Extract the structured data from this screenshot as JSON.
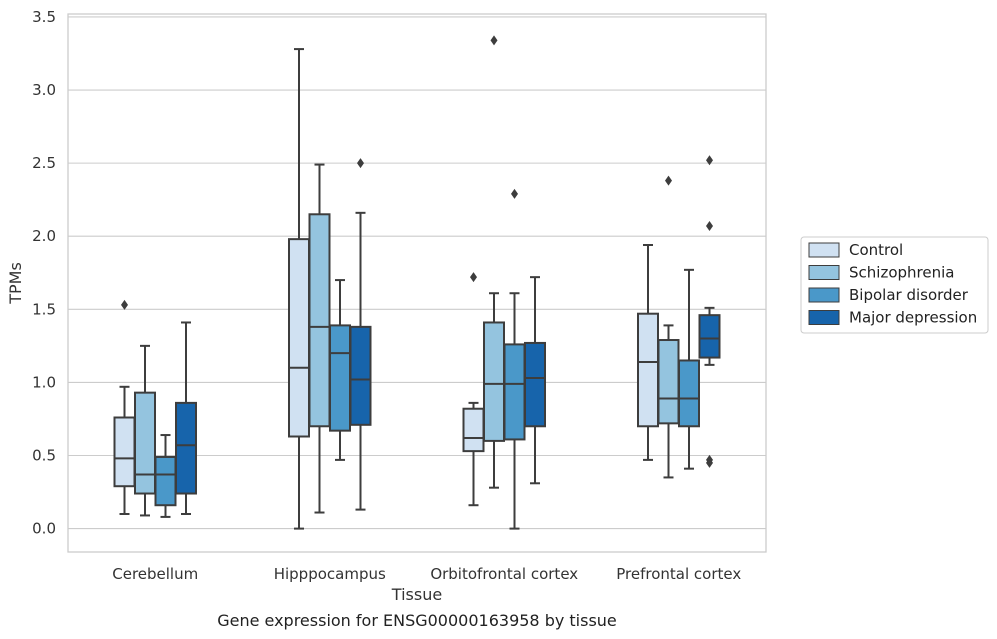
{
  "chart_data": {
    "type": "box",
    "xlabel": "Tissue",
    "ylabel": "TPMs",
    "caption": "Gene expression for ENSG00000163958 by tissue",
    "categories": [
      "Cerebellum",
      "Hipppocampus",
      "Orbitofrontal cortex",
      "Prefrontal cortex"
    ],
    "ylim": [
      -0.16,
      3.52
    ],
    "yticks": [
      "0.0",
      "0.5",
      "1.0",
      "1.5",
      "2.0",
      "2.5",
      "3.0",
      "3.5"
    ],
    "grid": "horizontal",
    "legend_position": "right",
    "series": [
      {
        "name": "Control",
        "color": "#d0e1f2",
        "boxes": [
          {
            "whislo": 0.1,
            "q1": 0.29,
            "med": 0.48,
            "q3": 0.76,
            "whishi": 0.97,
            "fliers": [
              1.53
            ]
          },
          {
            "whislo": 0.0,
            "q1": 0.63,
            "med": 1.1,
            "q3": 1.98,
            "whishi": 3.28,
            "fliers": []
          },
          {
            "whislo": 0.16,
            "q1": 0.53,
            "med": 0.62,
            "q3": 0.82,
            "whishi": 0.86,
            "fliers": [
              1.72
            ]
          },
          {
            "whislo": 0.47,
            "q1": 0.7,
            "med": 1.14,
            "q3": 1.47,
            "whishi": 1.94,
            "fliers": []
          }
        ]
      },
      {
        "name": "Schizophrenia",
        "color": "#94c4df",
        "boxes": [
          {
            "whislo": 0.09,
            "q1": 0.24,
            "med": 0.37,
            "q3": 0.93,
            "whishi": 1.25,
            "fliers": []
          },
          {
            "whislo": 0.11,
            "q1": 0.7,
            "med": 1.38,
            "q3": 2.15,
            "whishi": 2.49,
            "fliers": []
          },
          {
            "whislo": 0.28,
            "q1": 0.6,
            "med": 0.99,
            "q3": 1.41,
            "whishi": 1.61,
            "fliers": [
              3.34
            ]
          },
          {
            "whislo": 0.35,
            "q1": 0.72,
            "med": 0.89,
            "q3": 1.29,
            "whishi": 1.39,
            "fliers": [
              2.38
            ]
          }
        ]
      },
      {
        "name": "Bipolar disorder",
        "color": "#4a98c9",
        "boxes": [
          {
            "whislo": 0.08,
            "q1": 0.16,
            "med": 0.37,
            "q3": 0.49,
            "whishi": 0.64,
            "fliers": []
          },
          {
            "whislo": 0.47,
            "q1": 0.67,
            "med": 1.2,
            "q3": 1.39,
            "whishi": 1.7,
            "fliers": []
          },
          {
            "whislo": 0.0,
            "q1": 0.61,
            "med": 0.99,
            "q3": 1.26,
            "whishi": 1.61,
            "fliers": [
              2.29
            ]
          },
          {
            "whislo": 0.41,
            "q1": 0.7,
            "med": 0.89,
            "q3": 1.15,
            "whishi": 1.77,
            "fliers": []
          }
        ]
      },
      {
        "name": "Major depression",
        "color": "#1764ab",
        "boxes": [
          {
            "whislo": 0.1,
            "q1": 0.24,
            "med": 0.57,
            "q3": 0.86,
            "whishi": 1.41,
            "fliers": []
          },
          {
            "whislo": 0.13,
            "q1": 0.71,
            "med": 1.02,
            "q3": 1.38,
            "whishi": 2.16,
            "fliers": [
              2.5
            ]
          },
          {
            "whislo": 0.31,
            "q1": 0.7,
            "med": 1.03,
            "q3": 1.27,
            "whishi": 1.72,
            "fliers": []
          },
          {
            "whislo": 1.12,
            "q1": 1.17,
            "med": 1.3,
            "q3": 1.46,
            "whishi": 1.51,
            "fliers": [
              2.52,
              2.07,
              0.47,
              0.45
            ]
          }
        ]
      }
    ]
  }
}
